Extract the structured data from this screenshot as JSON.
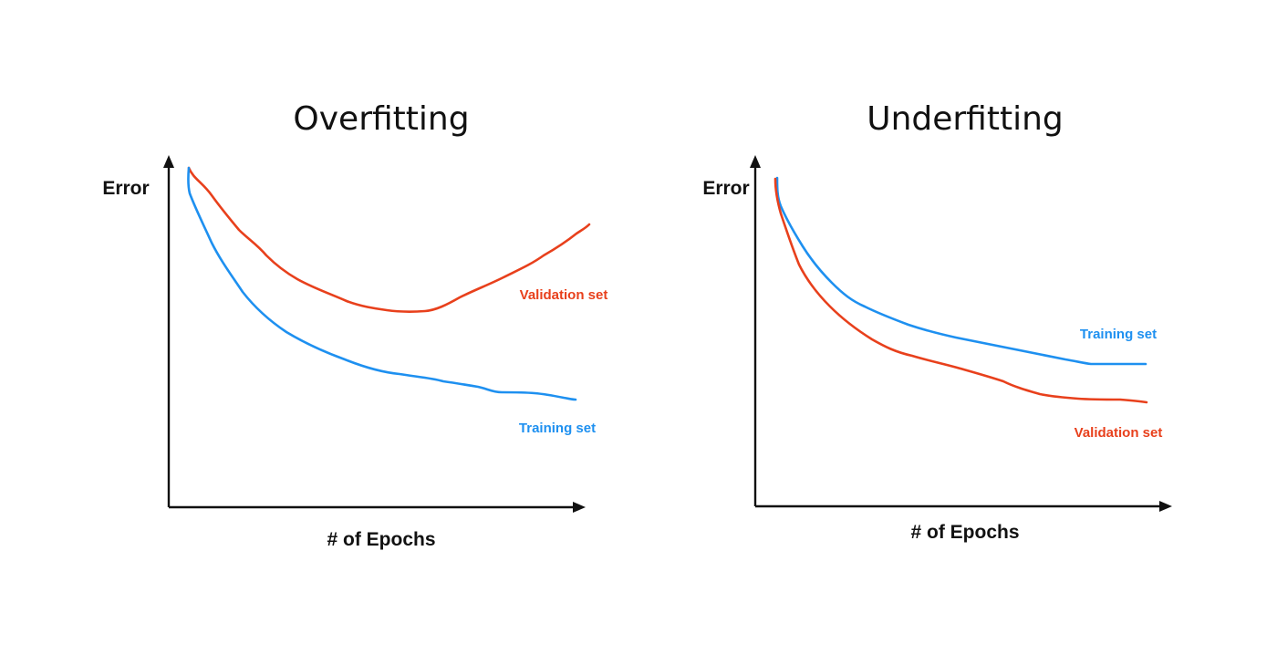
{
  "colors": {
    "validation": "#E8401C",
    "training": "#1E90F0",
    "axis": "#111111"
  },
  "panels": [
    {
      "title": "Overfitting",
      "ylabel": "Error",
      "xlabel": "# of Epochs",
      "validation_label": "Validation set",
      "training_label": "Training set"
    },
    {
      "title": "Underfitting",
      "ylabel": "Error",
      "xlabel": "# of Epochs",
      "validation_label": "Validation set",
      "training_label": "Training set"
    }
  ]
}
